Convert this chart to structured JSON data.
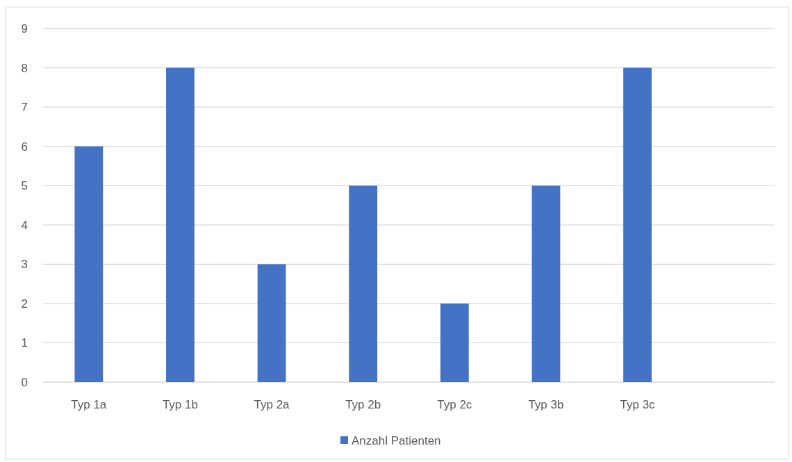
{
  "chart_data": {
    "type": "bar",
    "categories": [
      "Typ 1a",
      "Typ 1b",
      "Typ 2a",
      "Typ 2b",
      "Typ 2c",
      "Typ 3b",
      "Typ 3c",
      null
    ],
    "series": [
      {
        "name": "Anzahl Patienten",
        "color": "#4472c4",
        "values": [
          6,
          8,
          3,
          5,
          2,
          5,
          8,
          null
        ]
      }
    ],
    "ylim": [
      0,
      9
    ],
    "yticks": [
      0,
      1,
      2,
      3,
      4,
      5,
      6,
      7,
      8,
      9
    ],
    "grid": "y",
    "legend": "bottom"
  }
}
